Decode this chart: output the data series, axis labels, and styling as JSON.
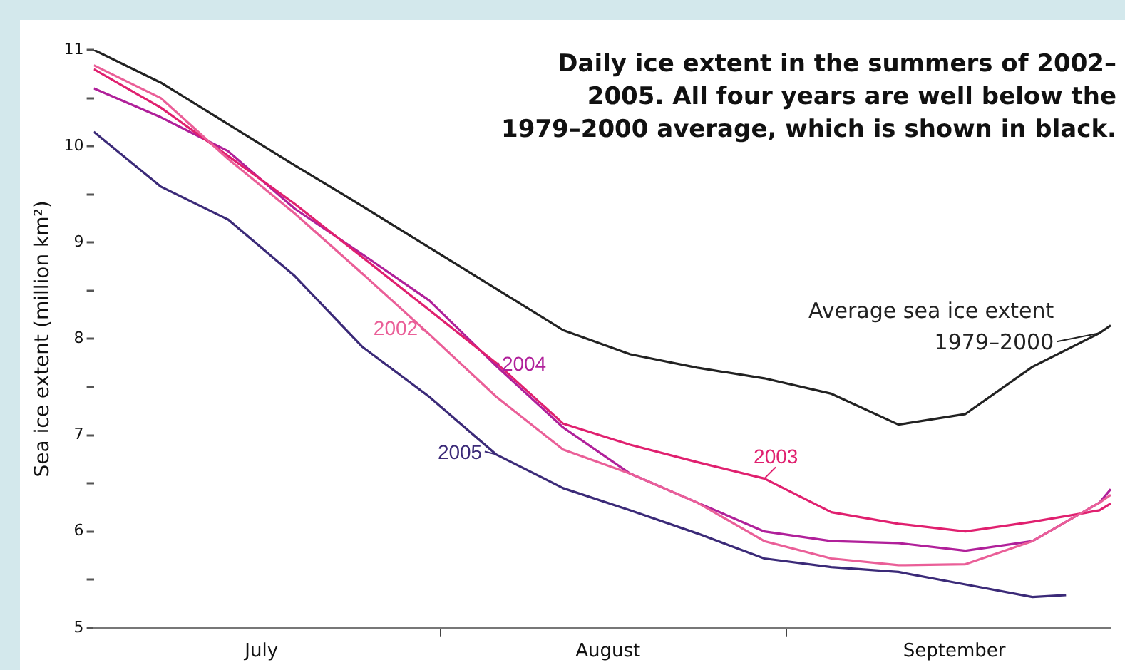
{
  "chart_data": {
    "type": "line",
    "title": "Daily ice extent in the summers of 2002–2005. All four years are well below the 1979–2000 average, which is shown in black.",
    "ylabel": "Sea ice extent (million km²)",
    "x": [
      "--07-01",
      "--07-07",
      "--07-13",
      "--07-19",
      "--07-25",
      "--07-31",
      "--08-06",
      "--08-12",
      "--08-18",
      "--08-24",
      "--08-30",
      "--09-05",
      "--09-11",
      "--09-17",
      "--09-23",
      "--09-29",
      "--09-30"
    ],
    "xlim": [
      "--07-01",
      "--09-30"
    ],
    "xticks": [
      {
        "value": "--07-16",
        "label": "July"
      },
      {
        "value": "--08-01",
        "label": null
      },
      {
        "value": "--08-16",
        "label": "August"
      },
      {
        "value": "--09-01",
        "label": null
      },
      {
        "value": "--09-16",
        "label": "September"
      }
    ],
    "ylim": [
      5,
      11
    ],
    "yticks": [
      5,
      {
        "value": 5.5,
        "label": null
      },
      6,
      {
        "value": 6.5,
        "label": null
      },
      7,
      {
        "value": 7.5,
        "label": null
      },
      8,
      {
        "value": 8.5,
        "label": null
      },
      9,
      {
        "value": 9.5,
        "label": null
      },
      10,
      {
        "value": 10.5,
        "label": null
      },
      11
    ],
    "grid": false,
    "legend": "right",
    "marker": "none",
    "line_style": "solid",
    "series": [
      {
        "name": "Average sea ice extent 1979–2000",
        "color": "#222222",
        "values": [
          11.0,
          10.66,
          10.23,
          9.8,
          9.38,
          8.95,
          8.52,
          8.09,
          7.84,
          7.7,
          7.59,
          7.43,
          7.11,
          7.22,
          7.71,
          8.06,
          8.14
        ]
      },
      {
        "name": "2002",
        "color": "#ea5f98",
        "values": [
          10.84,
          10.5,
          9.87,
          9.3,
          8.68,
          8.05,
          7.4,
          6.85,
          6.6,
          6.3,
          5.9,
          5.72,
          5.65,
          5.66,
          5.9,
          6.3,
          6.38
        ]
      },
      {
        "name": "2003",
        "color": "#e0206f",
        "values": [
          10.8,
          10.4,
          9.9,
          9.4,
          8.85,
          8.3,
          7.75,
          7.12,
          6.9,
          6.72,
          6.55,
          6.2,
          6.08,
          6.0,
          6.1,
          6.22,
          6.29
        ]
      },
      {
        "name": "2004",
        "color": "#b0209a",
        "values": [
          10.6,
          10.3,
          9.95,
          9.35,
          8.88,
          8.4,
          7.72,
          7.08,
          6.6,
          6.3,
          6.0,
          5.9,
          5.88,
          5.8,
          5.9,
          6.3,
          6.44
        ]
      },
      {
        "name": "2005",
        "color": "#3b2a78",
        "x": [
          "--07-01",
          "--07-07",
          "--07-13",
          "--07-19",
          "--07-25",
          "--07-31",
          "--08-06",
          "--08-12",
          "--08-18",
          "--08-24",
          "--08-30",
          "--09-05",
          "--09-11",
          "--09-17",
          "--09-23",
          "--09-26"
        ],
        "values": [
          10.15,
          9.58,
          9.24,
          8.65,
          7.92,
          7.4,
          6.8,
          6.45,
          6.22,
          5.98,
          5.72,
          5.63,
          5.58,
          5.45,
          5.32,
          5.34
        ]
      }
    ]
  }
}
